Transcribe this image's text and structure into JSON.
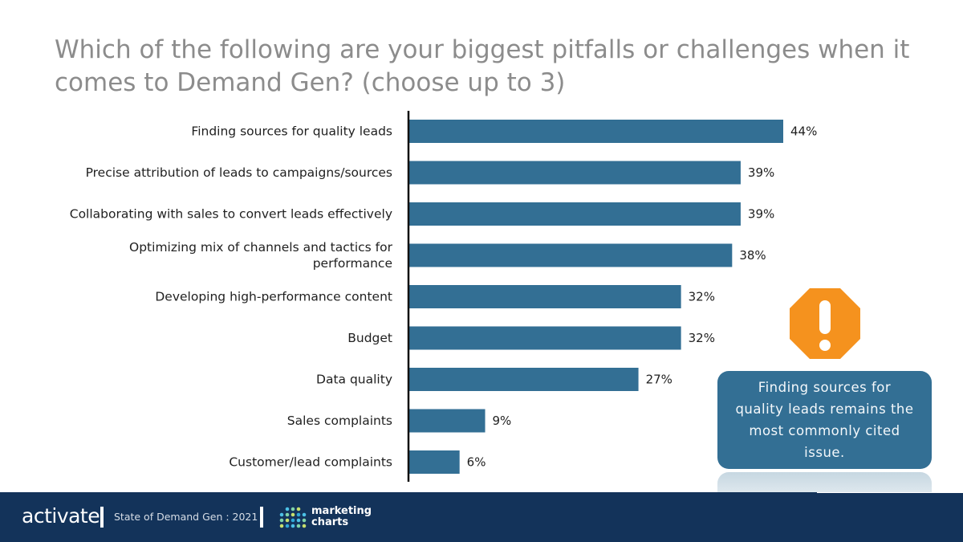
{
  "title": "Which of the following are your biggest pitfalls or challenges when it comes to Demand Gen? (choose up to 3)",
  "chart_data": {
    "type": "bar",
    "orientation": "horizontal",
    "categories": [
      "Finding sources for quality leads",
      "Precise attribution of leads to campaigns/sources",
      "Collaborating with sales to convert leads effectively",
      "Optimizing mix of channels and tactics for performance",
      "Developing high-performance content",
      "Budget",
      "Data quality",
      "Sales complaints",
      "Customer/lead complaints"
    ],
    "category_label_lines": [
      [
        "Finding sources for quality leads"
      ],
      [
        "Precise attribution of leads to campaigns/sources"
      ],
      [
        "Collaborating with sales to convert leads effectively"
      ],
      [
        "Optimizing mix of channels and tactics for",
        "performance"
      ],
      [
        "Developing high-performance content"
      ],
      [
        "Budget"
      ],
      [
        "Data quality"
      ],
      [
        "Sales complaints"
      ],
      [
        "Customer/lead complaints"
      ]
    ],
    "values": [
      44,
      39,
      39,
      38,
      32,
      32,
      27,
      9,
      6
    ],
    "value_labels": [
      "44%",
      "39%",
      "39%",
      "38%",
      "32%",
      "32%",
      "27%",
      "9%",
      "6%"
    ],
    "unit": "%",
    "xlim": [
      0,
      50
    ],
    "grid": false,
    "legend": "none",
    "bar_color": "#336f94",
    "axis_color": "#111111"
  },
  "callout": {
    "text": "Finding sources for quality leads remains the most commonly cited issue.",
    "icon": "warning-octagon-icon",
    "icon_color": "#f5921e",
    "box_color": "#336f94"
  },
  "footer": {
    "brand": "activate",
    "report": "State of Demand Gen : 2021",
    "partner_line1": "marketing",
    "partner_line2": "charts",
    "background": "#13335a"
  }
}
